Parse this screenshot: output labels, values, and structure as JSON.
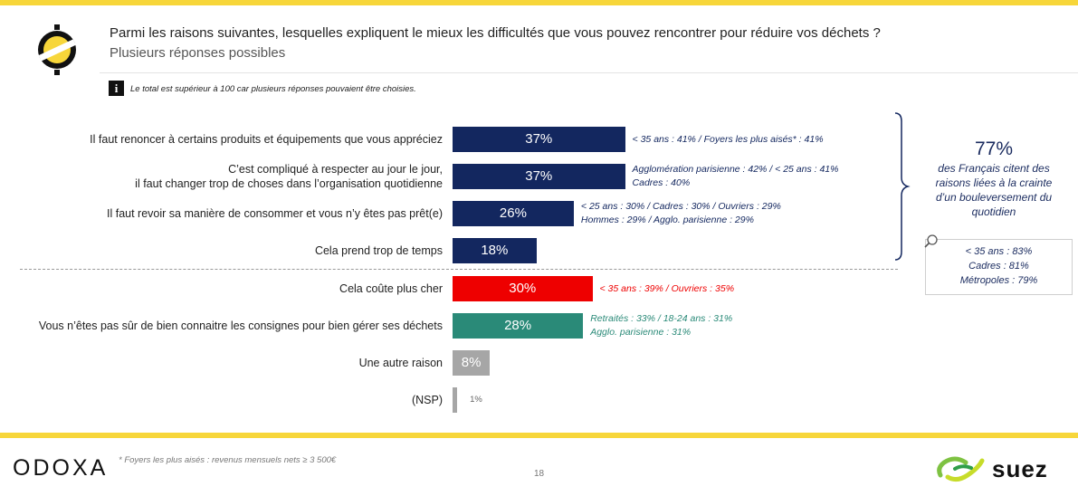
{
  "header": {
    "question": "Parmi les raisons suivantes, lesquelles expliquent le mieux les difficultés que vous pouvez rencontrer pour réduire vos déchets ?",
    "subtitle": "Plusieurs réponses possibles"
  },
  "note": {
    "icon": "i",
    "text": "Le total est supérieur à 100 car plusieurs réponses pouvaient être choisies."
  },
  "chart_data": {
    "type": "bar",
    "orientation": "horizontal",
    "categories": [
      "Il faut renoncer à certains produits et équipements que vous appréciez",
      "C’est compliqué à respecter au jour le jour,\nil faut changer trop de choses dans l’organisation quotidienne",
      "Il faut revoir sa manière de consommer et vous n’y êtes pas prêt(e)",
      "Cela prend trop de temps",
      "Cela coûte plus cher",
      "Vous n’êtes pas sûr de bien connaitre les consignes pour bien gérer ses déchets",
      "Une autre raison",
      "(NSP)"
    ],
    "values": [
      37,
      37,
      26,
      18,
      30,
      28,
      8,
      1
    ],
    "value_labels": [
      "37%",
      "37%",
      "26%",
      "18%",
      "30%",
      "28%",
      "8%",
      "1%"
    ],
    "colors": [
      "#13275f",
      "#13275f",
      "#13275f",
      "#13275f",
      "#ee0000",
      "#2a8a78",
      "#a6a6a6",
      "#a6a6a6"
    ],
    "xlim": [
      0,
      100
    ],
    "annotations": [
      [
        "< 35 ans : 41% / Foyers les plus aisés* : 41%"
      ],
      [
        "Agglomération parisienne : 42% / < 25 ans : 41%",
        "Cadres : 40%"
      ],
      [
        "< 25 ans : 30% / Cadres : 30% / Ouvriers : 29%",
        "Hommes : 29% / Agglo. parisienne : 29%"
      ],
      [],
      [
        "< 35 ans : 39% / Ouvriers : 35%"
      ],
      [
        "Retraités : 33% / 18-24 ans : 31%",
        "Agglo. parisienne : 31%"
      ],
      [],
      []
    ],
    "annotation_colors": [
      "#13275f",
      "#13275f",
      "#13275f",
      "#13275f",
      "#ee0000",
      "#2a8a78",
      "#13275f",
      "#13275f"
    ]
  },
  "callout": {
    "value": "77%",
    "text": "des Français citent des raisons liées à la crainte d’un bouleversement du quotidien",
    "details": [
      "< 35 ans : 83%",
      "Cadres : 81%",
      "Métropoles : 79%"
    ]
  },
  "footer": {
    "brand_left": "ODOXA",
    "footnote": "* Foyers les plus aisés : revenus mensuels nets ≥ 3 500€",
    "page_number": "18",
    "brand_right": "SUEZ"
  },
  "colors": {
    "accent_yellow": "#f7d63a",
    "navy": "#13275f",
    "red": "#ee0000",
    "teal": "#2a8a78",
    "grey": "#a6a6a6"
  }
}
